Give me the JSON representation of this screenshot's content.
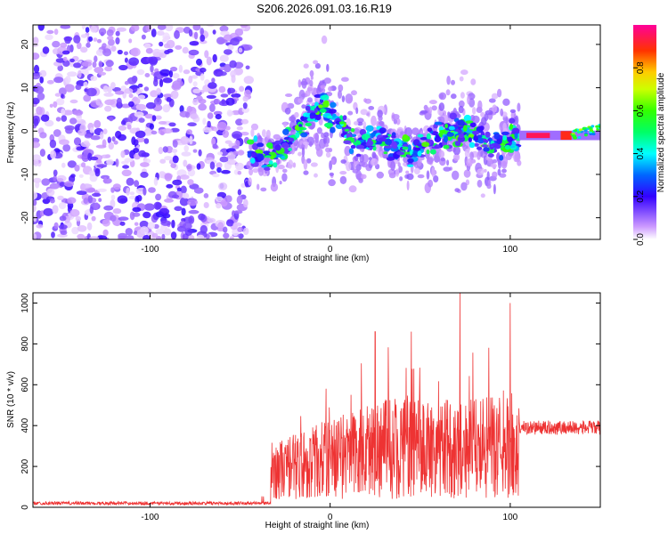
{
  "title": "S206.2026.091.03.16.R19",
  "chart_data": [
    {
      "type": "heatmap",
      "title": "S206.2026.091.03.16.R19",
      "xlabel": "Height of straight line (km)",
      "ylabel": "Frequency (Hz)",
      "xlim": [
        -165,
        150
      ],
      "ylim": [
        -25,
        24.5
      ],
      "xticks": [
        -100,
        0,
        100
      ],
      "yticks": [
        -20,
        -10,
        0,
        10,
        20
      ],
      "colorbar": {
        "label": "Normalized spectral amplitude",
        "range": [
          0.0,
          1.0
        ],
        "ticks": [
          0.0,
          0.2,
          0.4,
          0.6,
          0.8
        ]
      },
      "regions": [
        {
          "name": "noise",
          "x_range": [
            -165,
            -45
          ],
          "freq_range": [
            -25,
            24.5
          ],
          "amplitude": [
            0.0,
            0.35
          ]
        },
        {
          "name": "signal_track",
          "x_range": [
            -45,
            105
          ],
          "freq_center": [
            [
              -45,
              -5
            ],
            [
              -35,
              -6
            ],
            [
              -25,
              -4
            ],
            [
              -15,
              2
            ],
            [
              -5,
              6
            ],
            [
              5,
              2
            ],
            [
              15,
              -3
            ],
            [
              30,
              -2
            ],
            [
              45,
              -5
            ],
            [
              60,
              -1
            ],
            [
              75,
              0
            ],
            [
              90,
              -3
            ],
            [
              105,
              -1
            ]
          ],
          "amplitude": [
            0.15,
            0.65
          ]
        },
        {
          "name": "strong_carrier",
          "x_range": [
            105,
            150
          ],
          "freq_center": -1,
          "amplitude": [
            0.7,
            0.95
          ]
        }
      ]
    },
    {
      "type": "line",
      "xlabel": "Height of straight line (km)",
      "ylabel": "SNR (10 * v/v)",
      "xlim": [
        -165,
        150
      ],
      "ylim": [
        0,
        1050
      ],
      "xticks": [
        -100,
        0,
        100
      ],
      "yticks": [
        0,
        200,
        400,
        600,
        800,
        1000
      ],
      "color": "#ee3333",
      "series": [
        {
          "name": "SNR",
          "segments": [
            {
              "x_range": [
                -165,
                -33
              ],
              "baseline": 20,
              "noise": 8
            },
            {
              "x_range": [
                -33,
                105
              ],
              "baseline": 280,
              "noise": 250,
              "peaks": [
                [
                  -33,
                  380
                ],
                [
                  25,
                  860
                ],
                [
                  45,
                  860
                ],
                [
                  72,
                  1050
                ],
                [
                  100,
                  1000
                ]
              ]
            },
            {
              "x_range": [
                105,
                150
              ],
              "baseline": 390,
              "noise": 35
            }
          ]
        }
      ]
    }
  ]
}
